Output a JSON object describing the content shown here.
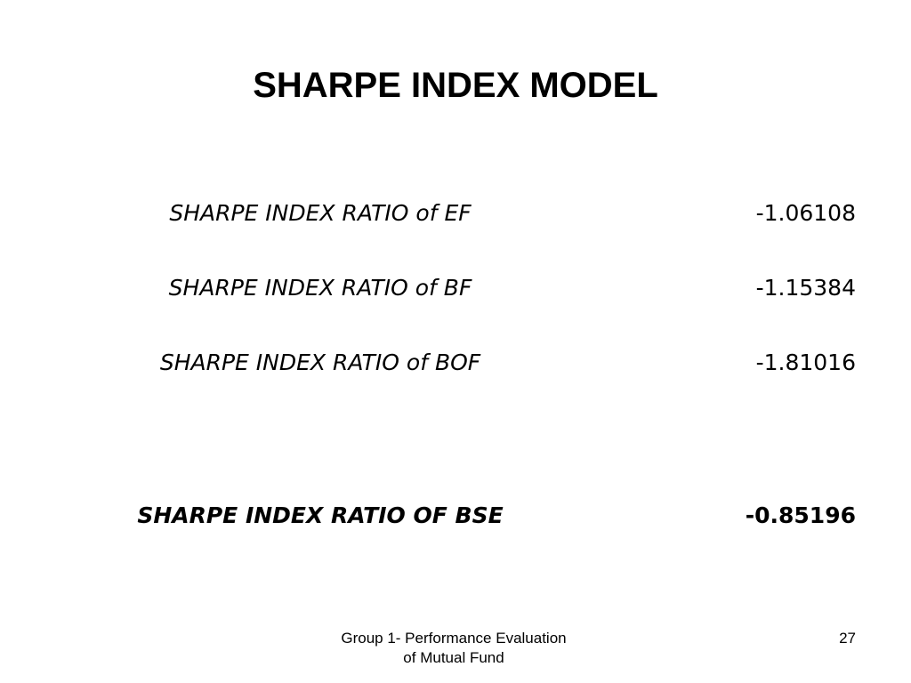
{
  "slide": {
    "title": "SHARPE INDEX MODEL",
    "rows": [
      {
        "label": "SHARPE INDEX RATIO  of EF",
        "value": "-1.06108"
      },
      {
        "label": "SHARPE INDEX RATIO of BF",
        "value": "-1.15384"
      },
      {
        "label": "SHARPE INDEX RATIO of BOF",
        "value": "-1.81016"
      },
      {
        "label": "SHARPE INDEX RATIO OF BSE",
        "value": "-0.85196"
      }
    ]
  },
  "footer": {
    "line1": "Group 1- Performance Evaluation",
    "line2": "of Mutual Fund",
    "page_number": "27"
  }
}
